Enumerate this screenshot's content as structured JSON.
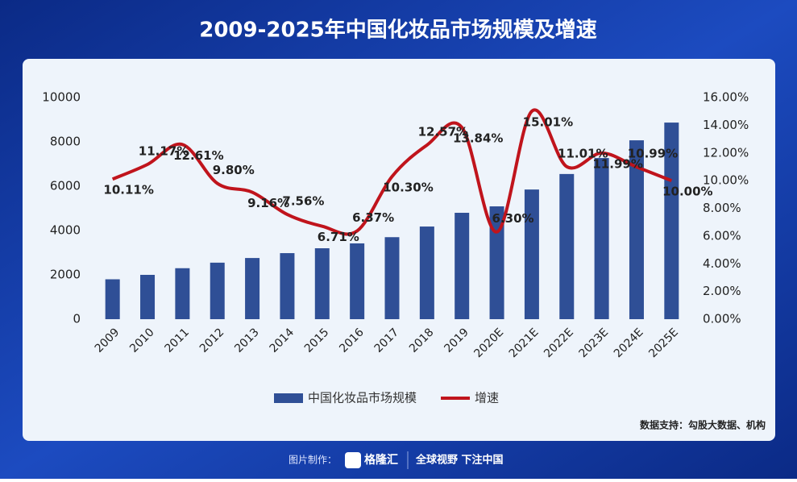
{
  "chart_data": {
    "type": "bar-line",
    "title": "2009-2025年中国化妆品市场规模及增速",
    "categories": [
      "2009",
      "2010",
      "2011",
      "2012",
      "2013",
      "2014",
      "2015",
      "2016",
      "2017",
      "2018",
      "2019",
      "2020E",
      "2021E",
      "2022E",
      "2023E",
      "2024E",
      "2025E"
    ],
    "series": [
      {
        "name": "中国化妆品市场规模",
        "color": "#2f4f96",
        "type": "bar",
        "values": [
          1800,
          2000,
          2300,
          2550,
          2760,
          2980,
          3200,
          3420,
          3700,
          4180,
          4800,
          5090,
          5850,
          6550,
          7270,
          8070,
          8870
        ]
      },
      {
        "name": "增速",
        "color": "#c0141c",
        "type": "line",
        "axis": "y2",
        "values": [
          10.11,
          11.17,
          12.61,
          9.8,
          9.16,
          7.56,
          6.71,
          6.37,
          10.3,
          12.57,
          13.84,
          6.3,
          15.01,
          11.01,
          11.99,
          10.99,
          10.0
        ],
        "value_labels": [
          "10.11%",
          "11.17%",
          "12.61%",
          "9.80%",
          "9.16%",
          "7.56%",
          "6.71%",
          "6.37%",
          "10.30%",
          "12.57%",
          "13.84%",
          "6.30%",
          "15.01%",
          "11.01%",
          "11.99%",
          "10.99%",
          "10.00%"
        ]
      }
    ],
    "ylim": [
      0,
      10000
    ],
    "yticks": [
      0,
      2000,
      4000,
      6000,
      8000,
      10000
    ],
    "y2lim": [
      0,
      16
    ],
    "y2ticks": [
      {
        "value": 0,
        "label": "0.00%"
      },
      {
        "value": 2,
        "label": "2.00%"
      },
      {
        "value": 4,
        "label": "4.00%"
      },
      {
        "value": 6,
        "label": "6.00%"
      },
      {
        "value": 8,
        "label": "8.00%"
      },
      {
        "value": 10,
        "label": "10.00%"
      },
      {
        "value": 12,
        "label": "12.00%"
      },
      {
        "value": 14,
        "label": "14.00%"
      },
      {
        "value": 16,
        "label": "16.00%"
      }
    ],
    "legend": "bottom",
    "source": "数据支持：勾股大数据、机构"
  },
  "footer": {
    "credit": "图片制作：",
    "brand": "格隆汇",
    "slogan": "全球视野 下注中国"
  }
}
